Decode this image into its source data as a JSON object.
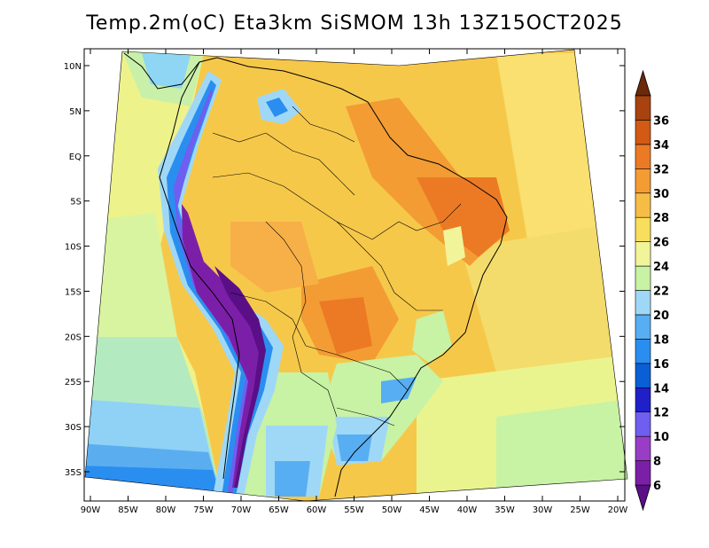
{
  "title": "Temp.2m(oC) Eta3km SiSMOM 13h 13Z15OCT2025",
  "map": {
    "lon_ticks": [
      "90W",
      "85W",
      "80W",
      "75W",
      "70W",
      "65W",
      "60W",
      "55W",
      "50W",
      "45W",
      "40W",
      "35W",
      "30W",
      "25W",
      "20W"
    ],
    "lat_ticks": [
      "10N",
      "5N",
      "EQ",
      "5S",
      "10S",
      "15S",
      "20S",
      "25S",
      "30S",
      "35S"
    ],
    "lon_range": [
      -90,
      -20
    ],
    "lat_range": [
      -38,
      12
    ]
  },
  "colorbar": {
    "labels": [
      "6",
      "8",
      "10",
      "12",
      "14",
      "16",
      "18",
      "20",
      "22",
      "24",
      "26",
      "28",
      "30",
      "32",
      "34",
      "36"
    ],
    "colors": [
      "#5a0f87",
      "#7c1fa8",
      "#9a3dc6",
      "#6f5ef0",
      "#2020c8",
      "#0a5fd6",
      "#2a8ef0",
      "#58aef2",
      "#9fd8f6",
      "#c8f2a4",
      "#f2f49a",
      "#f8de5c",
      "#f6bd46",
      "#f39c34",
      "#ec7a24",
      "#d25a14",
      "#a8420e",
      "#6a2a0a"
    ]
  }
}
